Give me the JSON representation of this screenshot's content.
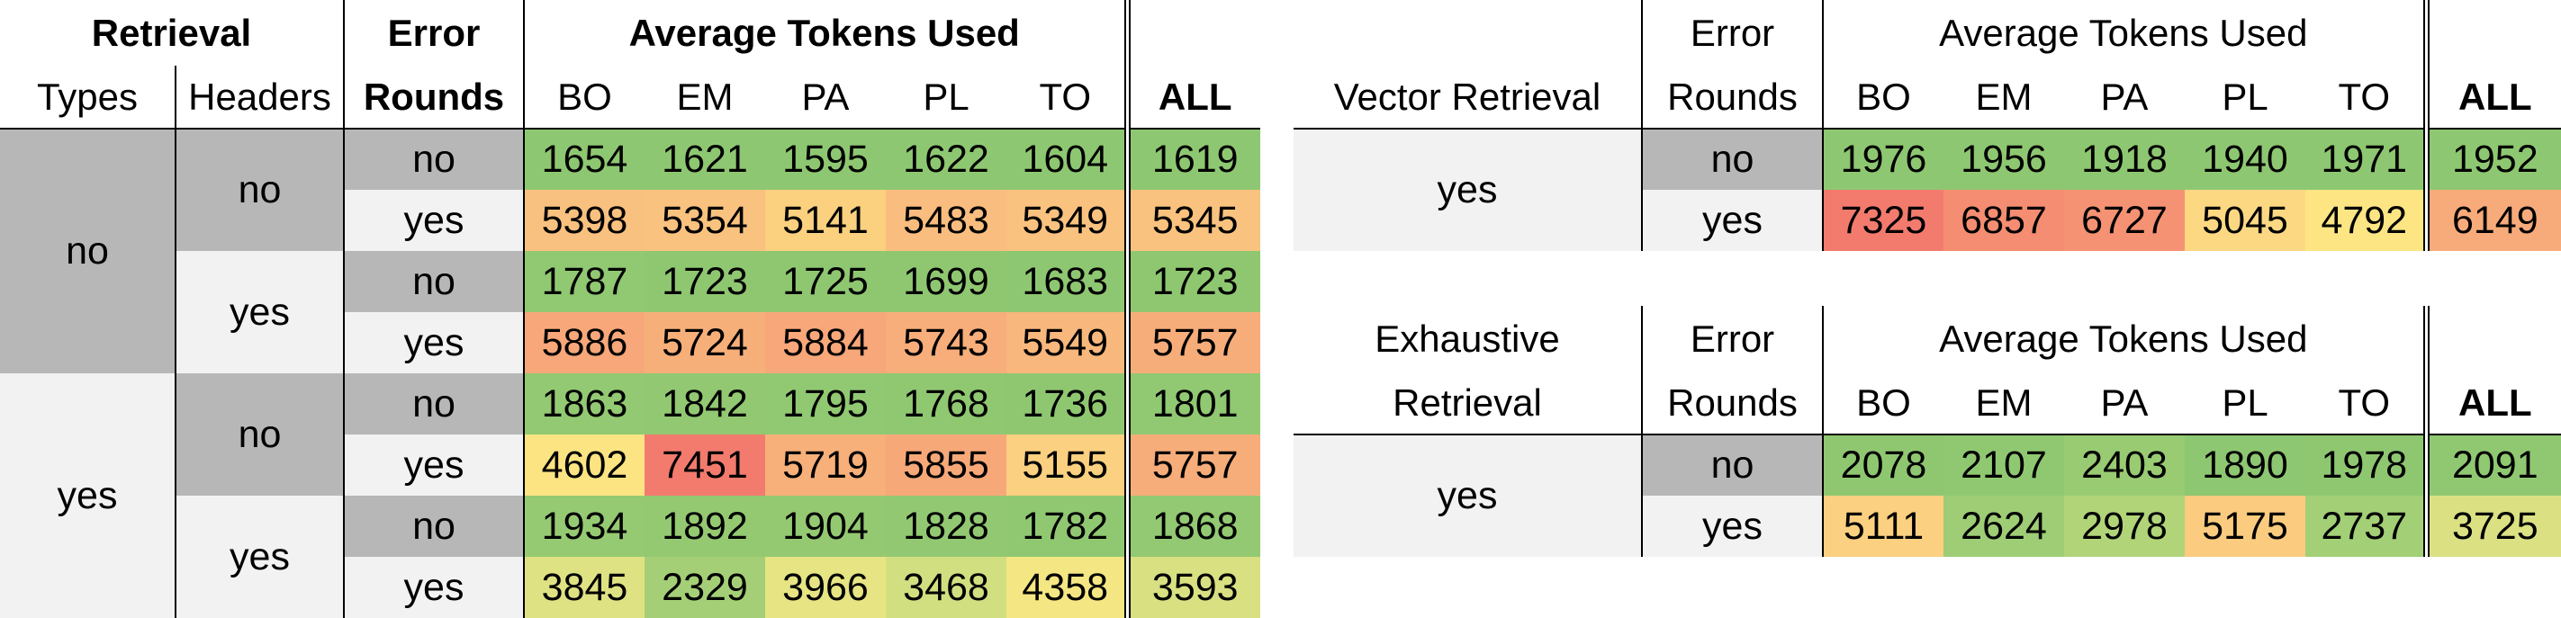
{
  "table1": {
    "hdr_retrieval": "Retrieval",
    "hdr_error": "Error",
    "hdr_avg": "Average Tokens Used",
    "hdr_types": "Types",
    "hdr_headers": "Headers",
    "hdr_rounds": "Rounds",
    "cols": [
      "BO",
      "EM",
      "PA",
      "PL",
      "TO",
      "ALL"
    ],
    "types": [
      "no",
      "yes"
    ],
    "headers": [
      "no",
      "yes",
      "no",
      "yes"
    ],
    "rows": [
      {
        "err": "no",
        "vals": [
          "1654",
          "1621",
          "1595",
          "1622",
          "1604",
          "1619"
        ],
        "colors": [
          "#8ec771",
          "#8ec771",
          "#8ec771",
          "#8ec771",
          "#8ec771",
          "#8ec771"
        ]
      },
      {
        "err": "yes",
        "vals": [
          "5398",
          "5354",
          "5141",
          "5483",
          "5349",
          "5345"
        ],
        "colors": [
          "#f9c17f",
          "#f9c27f",
          "#fbd07f",
          "#f9bd7f",
          "#f9c27f",
          "#f9c27f"
        ]
      },
      {
        "err": "no",
        "vals": [
          "1787",
          "1723",
          "1725",
          "1699",
          "1683",
          "1723"
        ],
        "colors": [
          "#91c872",
          "#8fc771",
          "#8fc771",
          "#8fc771",
          "#8ec771",
          "#8fc771"
        ]
      },
      {
        "err": "yes",
        "vals": [
          "5886",
          "5724",
          "5884",
          "5743",
          "5549",
          "5757"
        ],
        "colors": [
          "#f7a779",
          "#f7af7a",
          "#f7a779",
          "#f7ae7a",
          "#f8b77c",
          "#f7ad7a"
        ]
      },
      {
        "err": "no",
        "vals": [
          "1863",
          "1842",
          "1795",
          "1768",
          "1736",
          "1801"
        ],
        "colors": [
          "#93c972",
          "#92c872",
          "#91c872",
          "#90c872",
          "#8fc771",
          "#91c872"
        ]
      },
      {
        "err": "yes",
        "vals": [
          "4602",
          "7451",
          "5719",
          "5855",
          "5155",
          "5757"
        ],
        "colors": [
          "#fde483",
          "#f27b6e",
          "#f7b07a",
          "#f7a879",
          "#fbd080",
          "#f7ad7a"
        ]
      },
      {
        "err": "no",
        "vals": [
          "1934",
          "1892",
          "1904",
          "1828",
          "1782",
          "1868"
        ],
        "colors": [
          "#95ca73",
          "#94c972",
          "#94c972",
          "#92c872",
          "#90c872",
          "#93c972"
        ]
      },
      {
        "err": "yes",
        "vals": [
          "3845",
          "2329",
          "3966",
          "3468",
          "4358",
          "3593"
        ],
        "colors": [
          "#dfe283",
          "#a5cf76",
          "#e6e483",
          "#d2df80",
          "#f5e684",
          "#d8e082"
        ]
      }
    ]
  },
  "table2": {
    "hdr_label": "Vector Retrieval",
    "hdr_error": "Error",
    "hdr_rounds": "Rounds",
    "hdr_avg": "Average Tokens Used",
    "cols": [
      "BO",
      "EM",
      "PA",
      "PL",
      "TO",
      "ALL"
    ],
    "label_value": "yes",
    "rows": [
      {
        "err": "no",
        "vals": [
          "1976",
          "1956",
          "1918",
          "1940",
          "1971",
          "1952"
        ],
        "colors": [
          "#8ec771",
          "#8ec771",
          "#8ec771",
          "#8ec771",
          "#8ec771",
          "#8ec771"
        ]
      },
      {
        "err": "yes",
        "vals": [
          "7325",
          "6857",
          "6727",
          "5045",
          "4792",
          "6149"
        ],
        "colors": [
          "#f27b6e",
          "#f48d71",
          "#f59274",
          "#fdd883",
          "#fde584",
          "#f8ab7a"
        ]
      }
    ]
  },
  "table3": {
    "hdr_label1": "Exhaustive",
    "hdr_label2": "Retrieval",
    "hdr_error": "Error",
    "hdr_rounds": "Rounds",
    "hdr_avg": "Average Tokens Used",
    "cols": [
      "BO",
      "EM",
      "PA",
      "PL",
      "TO",
      "ALL"
    ],
    "label_value": "yes",
    "rows": [
      {
        "err": "no",
        "vals": [
          "2078",
          "2107",
          "2403",
          "1890",
          "1978",
          "2091"
        ],
        "colors": [
          "#8fc771",
          "#90c872",
          "#99cb73",
          "#8ec771",
          "#8fc771",
          "#90c872"
        ]
      },
      {
        "err": "yes",
        "vals": [
          "5111",
          "2624",
          "2978",
          "5175",
          "2737",
          "3725"
        ],
        "colors": [
          "#fbd080",
          "#9ecd75",
          "#b1d479",
          "#fbcb7f",
          "#a3cf76",
          "#dbe183"
        ]
      }
    ]
  }
}
